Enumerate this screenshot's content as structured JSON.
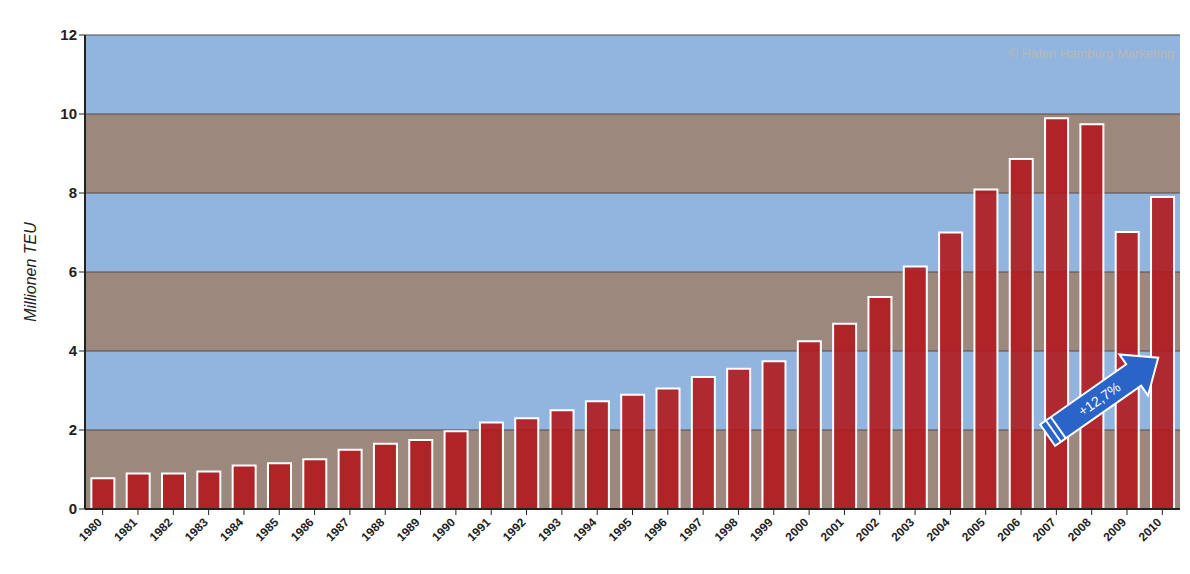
{
  "chart_data": {
    "type": "bar",
    "y_label": "Millionen TEU",
    "categories": [
      "1980",
      "1981",
      "1982",
      "1983",
      "1984",
      "1985",
      "1986",
      "1987",
      "1988",
      "1989",
      "1990",
      "1991",
      "1992",
      "1993",
      "1994",
      "1995",
      "1996",
      "1997",
      "1998",
      "1999",
      "2000",
      "2001",
      "2002",
      "2003",
      "2004",
      "2005",
      "2006",
      "2007",
      "2008",
      "2009",
      "2010"
    ],
    "values": [
      0.78,
      0.9,
      0.9,
      0.95,
      1.1,
      1.16,
      1.26,
      1.5,
      1.65,
      1.75,
      1.97,
      2.19,
      2.3,
      2.5,
      2.73,
      2.89,
      3.05,
      3.34,
      3.55,
      3.74,
      4.25,
      4.69,
      5.37,
      6.14,
      7.0,
      8.09,
      8.86,
      9.89,
      9.74,
      7.01,
      7.9
    ],
    "color": "#b3191e",
    "ylim": [
      0,
      12
    ],
    "yticks": [
      0,
      2,
      4,
      6,
      8,
      10,
      12
    ],
    "grid": true,
    "annotations": [
      "+12,7%"
    ],
    "source": "© Hafen Hamburg Marketing"
  }
}
